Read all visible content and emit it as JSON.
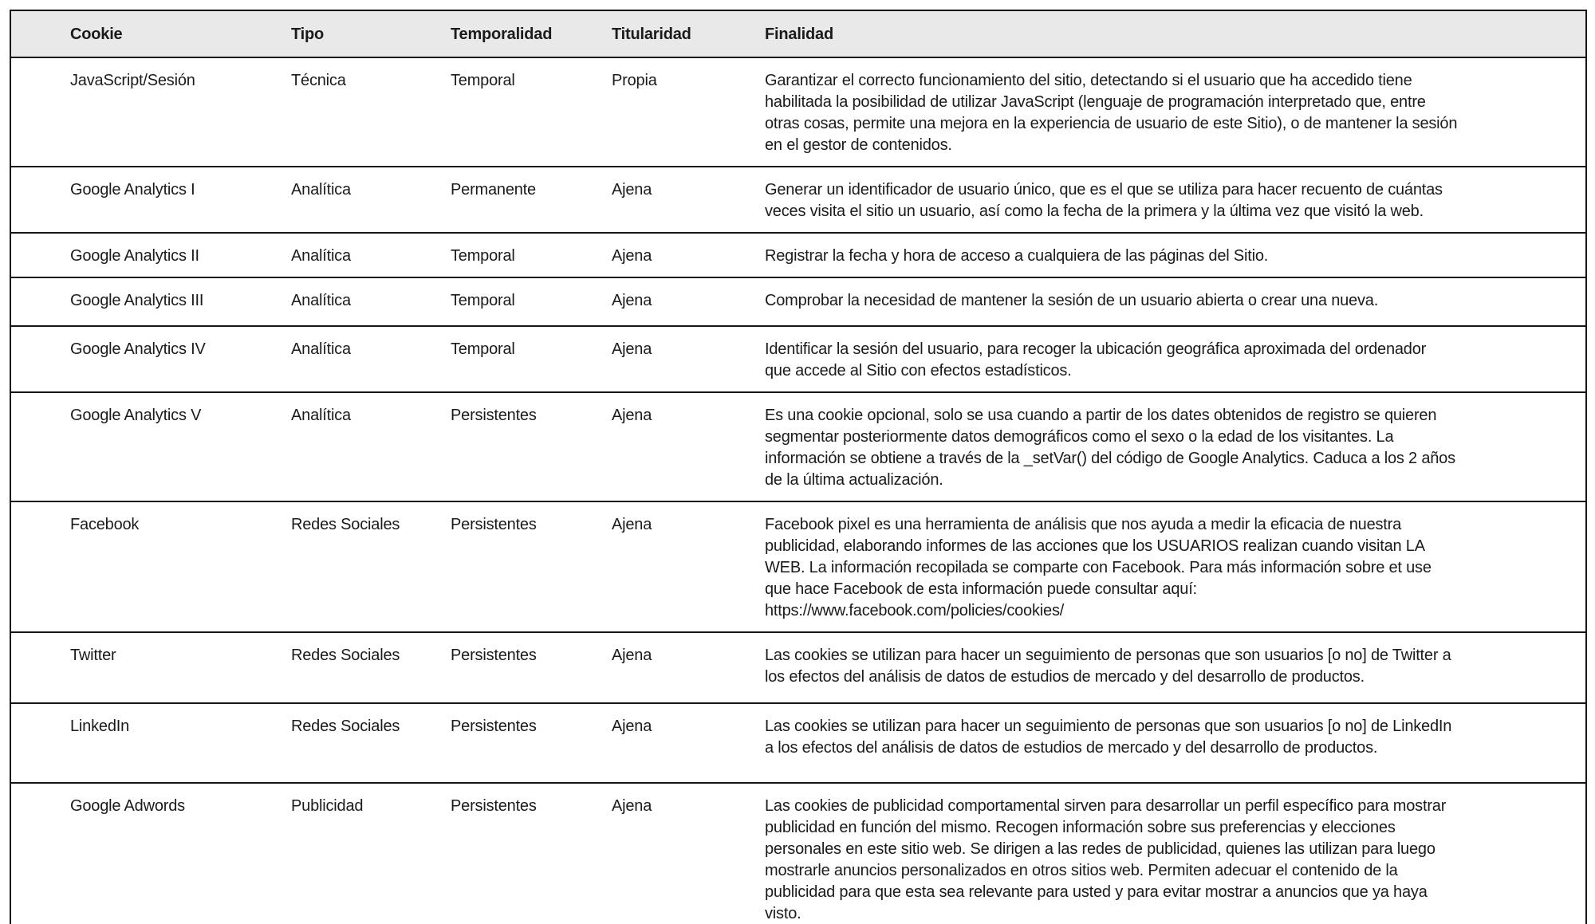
{
  "colors": {
    "header_bg": "#e9e9e9",
    "border": "#161616",
    "text": "#1b1b1b",
    "background": "#ffffff"
  },
  "table": {
    "columns": [
      {
        "key": "cookie",
        "label": "Cookie"
      },
      {
        "key": "tipo",
        "label": "Tipo"
      },
      {
        "key": "temporalidad",
        "label": "Temporalidad"
      },
      {
        "key": "titularidad",
        "label": "Titularidad"
      },
      {
        "key": "finalidad",
        "label": "Finalidad"
      }
    ],
    "rows": [
      {
        "cookie": "JavaScript/Sesión",
        "tipo": "Técnica",
        "temporalidad": "Temporal",
        "titularidad": "Propia",
        "finalidad": "Garantizar el correcto funcionamiento del sitio, detectando si el usuario que ha accedido tiene\nhabilitada la posibilidad de utilizar JavaScript (lenguaje de programación interpretado que, entre\notras cosas, permite una mejora en la experiencia de usuario de este Sitio), o de mantener la sesión\nen el gestor de contenidos."
      },
      {
        "cookie": "Google Analytics I",
        "tipo": "Analítica",
        "temporalidad": "Permanente",
        "titularidad": "Ajena",
        "finalidad": "Generar un identificador de usuario único, que es el que se utiliza para hacer recuento de cuántas\nveces visita el sitio un usuario, así como la fecha de la primera y la última vez que visitó la web."
      },
      {
        "cookie": "Google Analytics II",
        "tipo": "Analítica",
        "temporalidad": "Temporal",
        "titularidad": "Ajena",
        "finalidad": "Registrar la fecha y hora de acceso a cualquiera de las páginas del Sitio."
      },
      {
        "cookie": "Google Analytics III",
        "tipo": "Analítica",
        "temporalidad": "Temporal",
        "titularidad": "Ajena",
        "finalidad": "Comprobar la necesidad de mantener la sesión de un usuario abierta o crear una nueva."
      },
      {
        "cookie": "Google Analytics IV",
        "tipo": "Analítica",
        "temporalidad": "Temporal",
        "titularidad": "Ajena",
        "finalidad": "Identificar la sesión del usuario, para recoger la ubicación geográfica aproximada del ordenador\nque accede al Sitio con efectos estadísticos."
      },
      {
        "cookie": "Google Analytics V",
        "tipo": "Analítica",
        "temporalidad": "Persistentes",
        "titularidad": "Ajena",
        "finalidad": "Es una cookie opcional, solo se usa cuando a partir de los dates obtenidos de registro se quieren\nsegmentar posteriormente datos demográficos como el sexo o la edad de los visitantes. La\ninformación se obtiene a través de la _setVar() del código de Google Analytics. Caduca a los 2 años\nde la última actualización."
      },
      {
        "cookie": "Facebook",
        "tipo": "Redes Sociales",
        "temporalidad": "Persistentes",
        "titularidad": "Ajena",
        "finalidad": "Facebook pixel es una herramienta de análisis que nos ayuda a medir la eficacia de nuestra\npublicidad, elaborando informes de las acciones que los USUARIOS realizan cuando visitan LA\nWEB. La información recopilada se comparte con Facebook. Para más información sobre et use\nque hace Facebook de esta información puede consultar aquí:\nhttps://www.facebook.com/policies/cookies/"
      },
      {
        "cookie": "Twitter",
        "tipo": "Redes Sociales",
        "temporalidad": "Persistentes",
        "titularidad": "Ajena",
        "finalidad": "Las cookies se utilizan para hacer un seguimiento de personas que son usuarios [o no] de Twitter a\nlos efectos del análisis de datos de estudios de mercado y del desarrollo de productos."
      },
      {
        "cookie": "LinkedIn",
        "tipo": "Redes Sociales",
        "temporalidad": "Persistentes",
        "titularidad": "Ajena",
        "finalidad": "Las cookies se utilizan para hacer un seguimiento de personas que son usuarios [o no] de LinkedIn\na los efectos del análisis de datos de estudios de mercado y del desarrollo de productos."
      },
      {
        "cookie": "Google Adwords",
        "tipo": "Publicidad",
        "temporalidad": "Persistentes",
        "titularidad": "Ajena",
        "finalidad": "Las cookies de publicidad comportamental sirven para desarrollar un perfil específico para mostrar\npublicidad en función del mismo. Recogen información sobre sus preferencias y elecciones\npersonales en este sitio web. Se dirigen a las redes de publicidad, quienes las utilizan para luego\nmostrarle anuncios personalizados en otros sitios web. Permiten adecuar el contenido de la\npublicidad para que esta sea relevante para usted y para evitar mostrar a anuncios que ya haya\nvisto."
      }
    ]
  }
}
